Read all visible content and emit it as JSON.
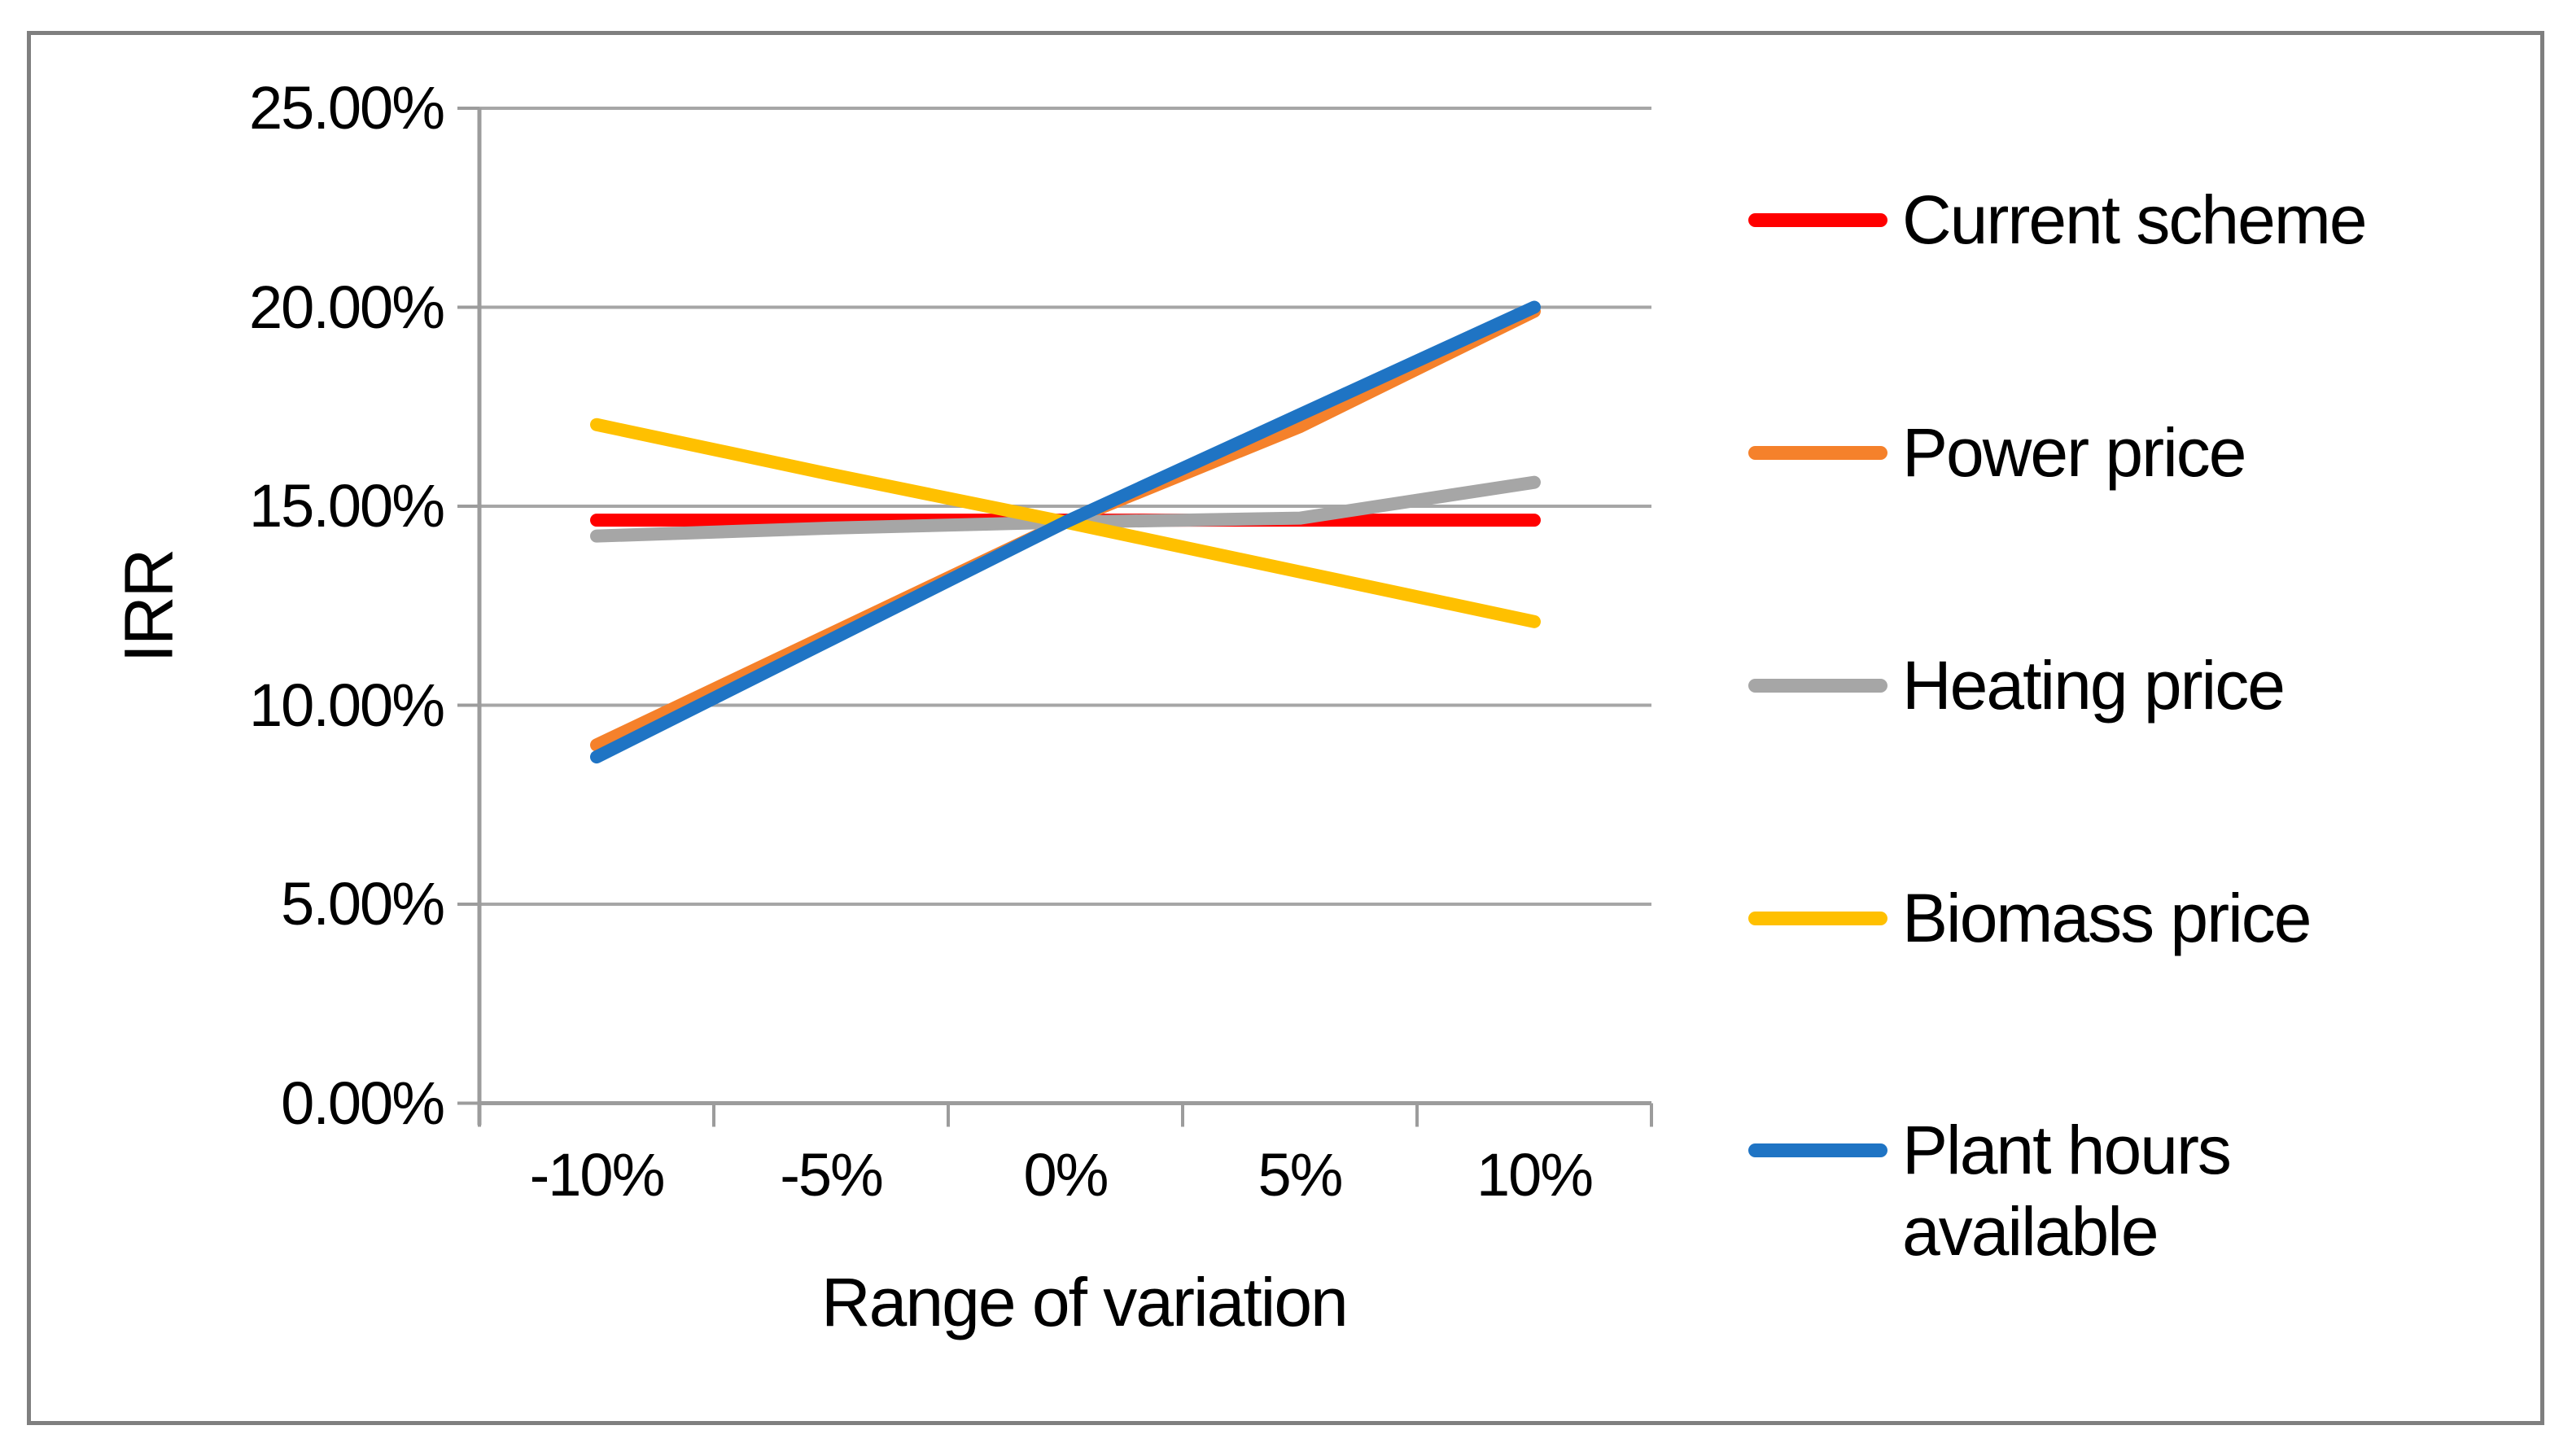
{
  "chart_data": {
    "type": "line",
    "title": "",
    "xlabel": "Range of variation",
    "ylabel": "IRR",
    "x_categories": [
      "-10%",
      "-5%",
      "0%",
      "5%",
      "10%"
    ],
    "x_values_pct": [
      -10,
      -5,
      0,
      5,
      10
    ],
    "y_tick_labels": [
      "25.00%",
      "20.00%",
      "15.00%",
      "10.00%",
      "5.00%",
      "0.00%"
    ],
    "ylim": [
      0,
      25
    ],
    "y_unit": "percent IRR",
    "grid": "horizontal-only",
    "legend_position": "right",
    "series": [
      {
        "name": "Current scheme",
        "color": "#FF0000",
        "values": [
          14.65,
          14.65,
          14.65,
          14.65,
          14.65
        ]
      },
      {
        "name": "Power price",
        "color": "#F5812B",
        "values": [
          9.0,
          11.8,
          14.6,
          17.0,
          19.9
        ]
      },
      {
        "name": "Heating price",
        "color": "#A6A6A6",
        "values": [
          14.25,
          14.45,
          14.6,
          14.7,
          15.6
        ]
      },
      {
        "name": "Biomass price",
        "color": "#FFC000",
        "values": [
          17.05,
          15.8,
          14.6,
          13.35,
          12.1
        ]
      },
      {
        "name": "Plant hours available",
        "color": "#1F74C4",
        "values": [
          8.7,
          11.65,
          14.6,
          17.3,
          20.0
        ]
      }
    ],
    "colors": {
      "gridline": "#A6A6A6",
      "axis_line": "#9C9C9C",
      "border": "#7F7F7F",
      "text": "#000000",
      "background": "#FFFFFF"
    }
  }
}
